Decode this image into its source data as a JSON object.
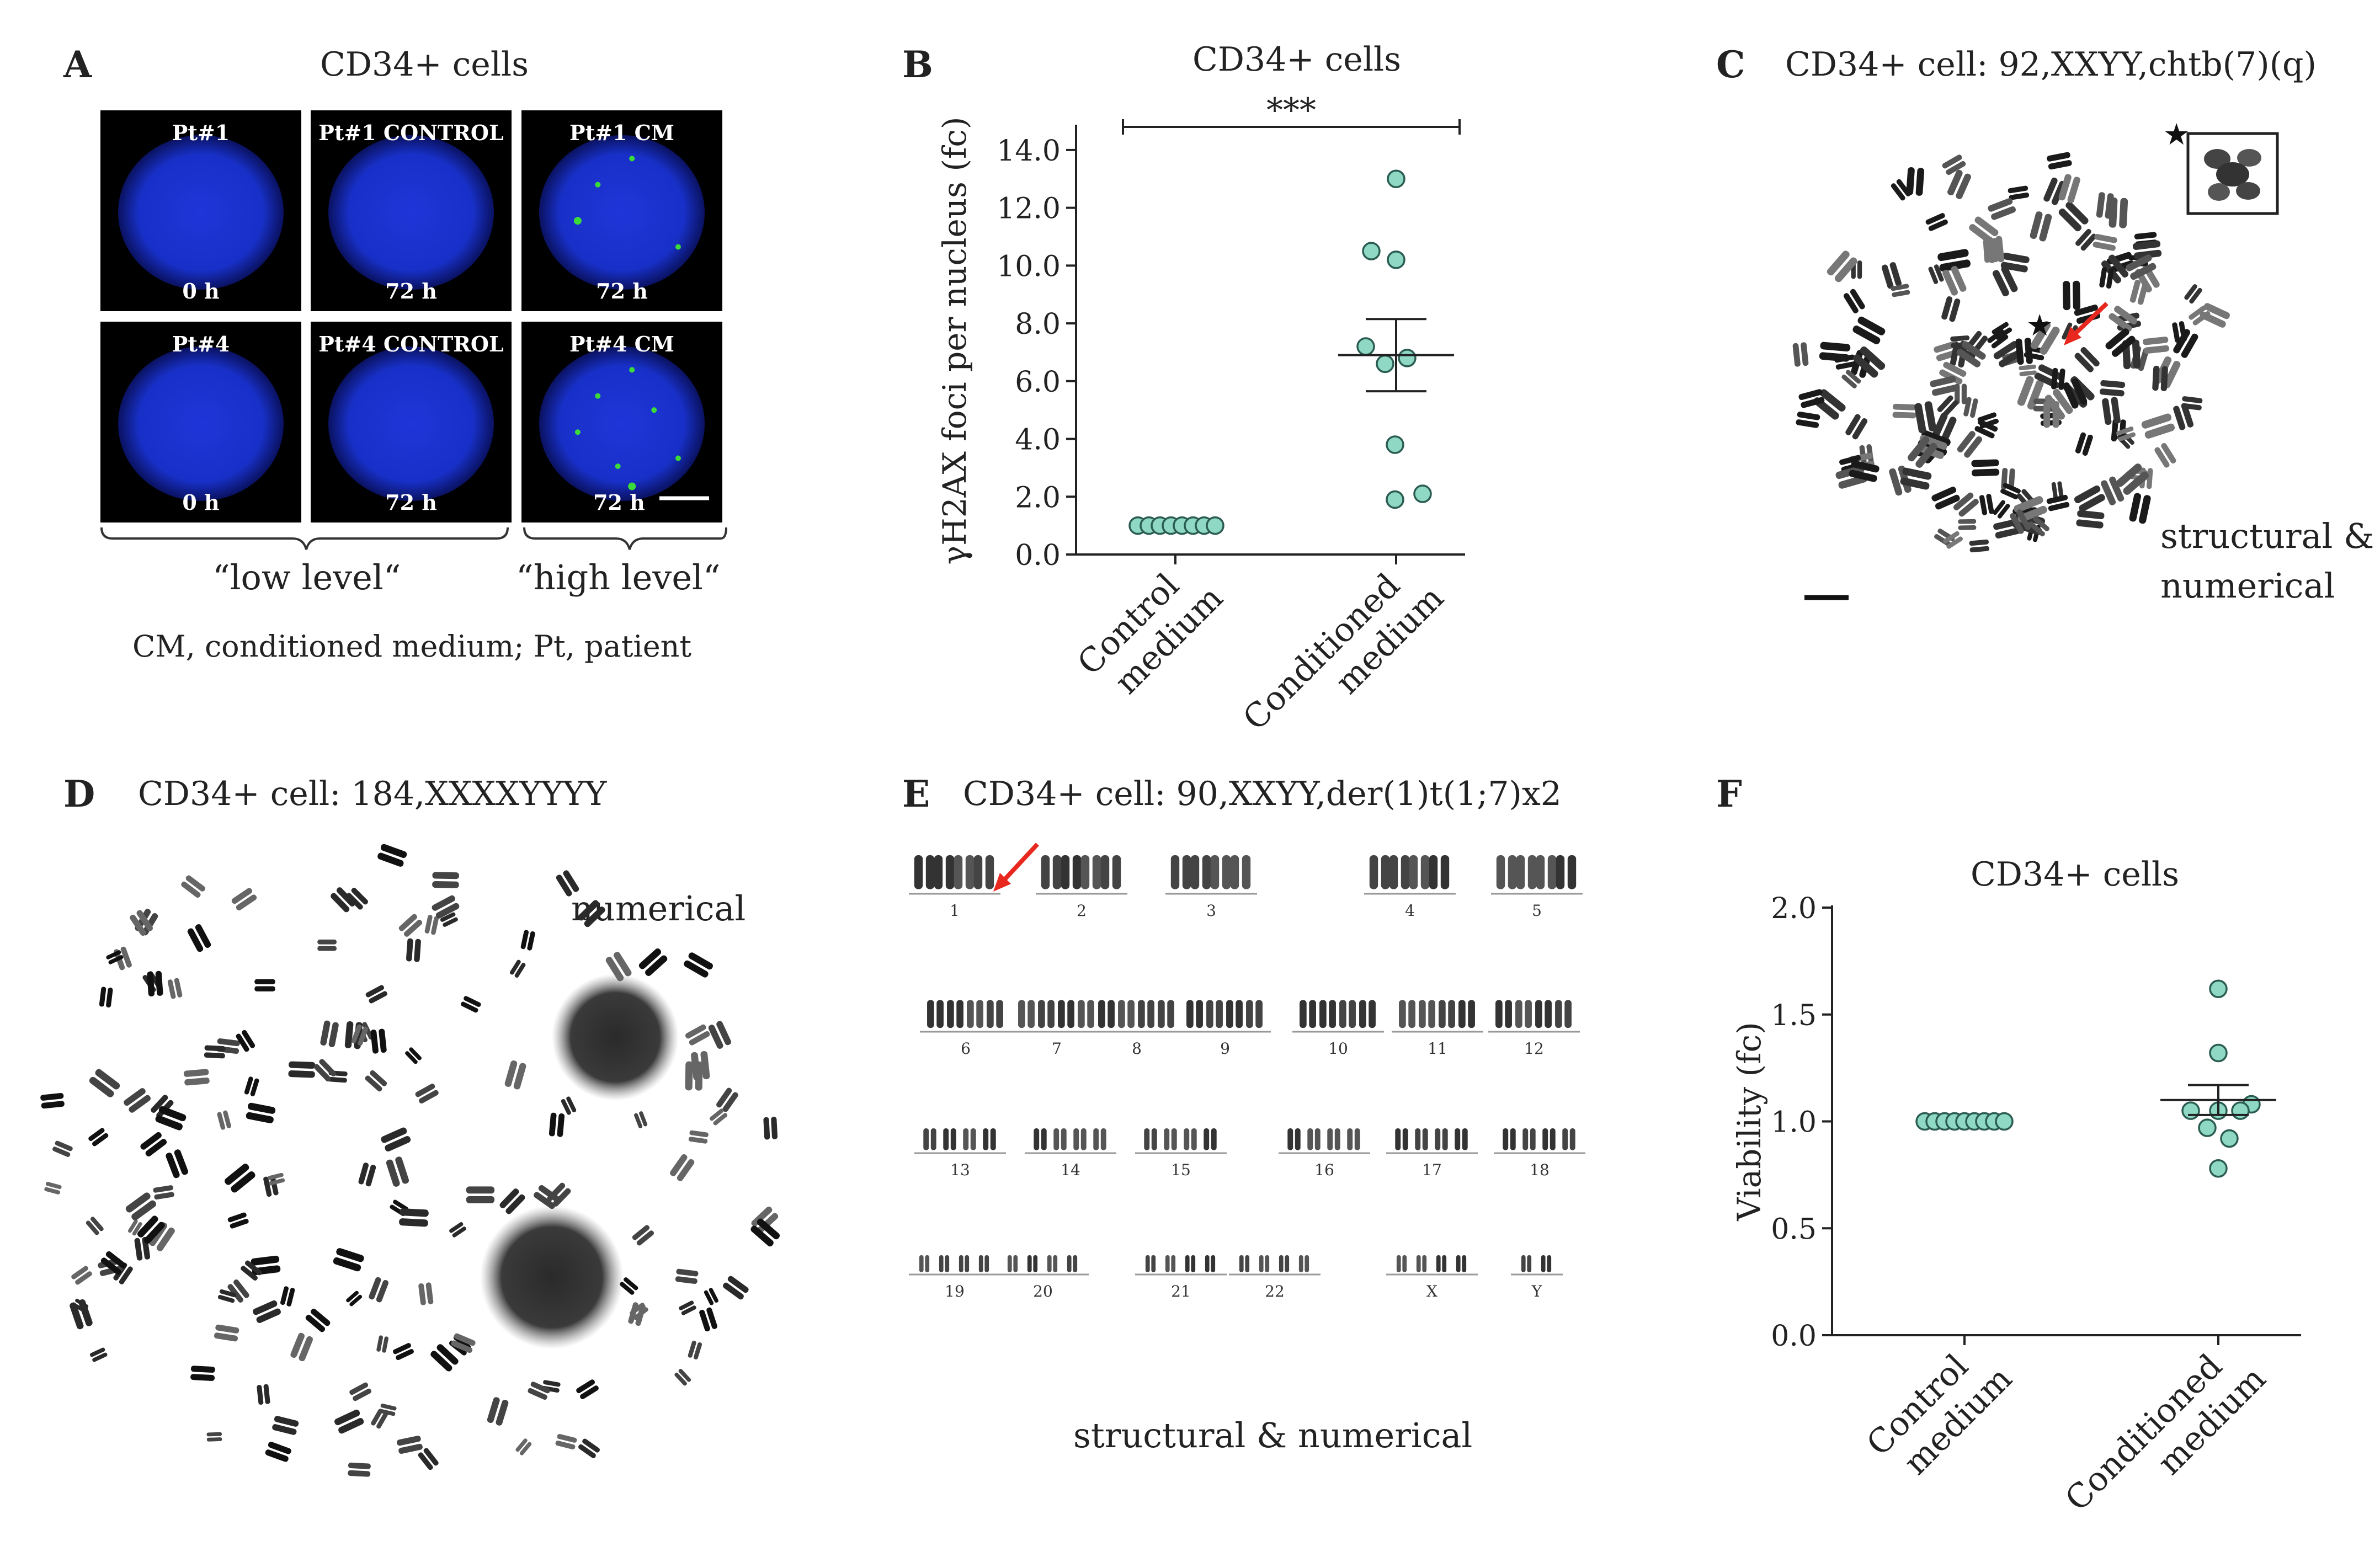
{
  "panels": {
    "A": {
      "label": "A",
      "title": "CD34+ cells",
      "images": [
        {
          "top": "Pt#1",
          "bottom": "0 h",
          "foci": 0
        },
        {
          "top": "Pt#1 CONTROL",
          "bottom": "72 h",
          "foci": 0
        },
        {
          "top": "Pt#1 CM",
          "bottom": "72 h",
          "foci": 4
        },
        {
          "top": "Pt#4",
          "bottom": "0 h",
          "foci": 0
        },
        {
          "top": "Pt#4 CONTROL",
          "bottom": "72 h",
          "foci": 0
        },
        {
          "top": "Pt#4 CM",
          "bottom": "72 h",
          "foci": 7
        }
      ],
      "group_low": "“low level“",
      "group_high": "“high level“",
      "caption": "CM, conditioned medium; Pt, patient"
    },
    "B": {
      "label": "B"
    },
    "C": {
      "label": "C",
      "title": "CD34+ cell: 92,XXYY,chtb(7)(q)",
      "note_line1": "structural &",
      "note_line2": "numerical",
      "star": "★"
    },
    "D": {
      "label": "D",
      "title": "CD34+ cell: 184,XXXXYYYY",
      "note": "numerical"
    },
    "E": {
      "label": "E",
      "title": "CD34+ cell: 90,XXYY,der(1)t(1;7)x2",
      "caption": "structural & numerical",
      "karyotype_labels": [
        "1",
        "2",
        "3",
        "4",
        "5",
        "6",
        "7",
        "8",
        "9",
        "10",
        "11",
        "12",
        "13",
        "14",
        "15",
        "16",
        "17",
        "18",
        "19",
        "20",
        "21",
        "22",
        "X",
        "Y"
      ]
    },
    "F": {
      "label": "F"
    }
  },
  "colors": {
    "point_fill": "#8fd9c4",
    "point_stroke": "#2b5c52",
    "dapi_blue": "#1830c8",
    "foci_green": "#3adb3a",
    "arrow_red": "#e8281e"
  },
  "chart_data": [
    {
      "type": "scatter",
      "title": "CD34+ cells",
      "categories": [
        "Control medium",
        "Conditioned medium"
      ],
      "ylabel": "γH2AX foci per nucleus (fc)",
      "yticks": [
        "0.0",
        "2.0",
        "4.0",
        "6.0",
        "8.0",
        "10.0",
        "12.0",
        "14.0"
      ],
      "ylim": [
        0,
        14.8
      ],
      "series": [
        {
          "values": [
            1.0,
            1.0,
            1.0,
            1.0,
            1.0,
            1.0,
            1.0,
            1.0
          ]
        },
        {
          "values": [
            13.0,
            10.5,
            10.2,
            7.2,
            6.6,
            6.8,
            3.8,
            1.9,
            2.1
          ]
        }
      ],
      "mean": [
        1.0,
        6.9
      ],
      "sem": [
        0,
        1.25
      ],
      "significance": "***"
    },
    {
      "type": "scatter",
      "title": "CD34+ cells",
      "categories": [
        "Control medium",
        "Conditioned medium"
      ],
      "ylabel": "Viability (fc)",
      "yticks": [
        "0.0",
        "0.5",
        "1.0",
        "1.5",
        "2.0"
      ],
      "ylim": [
        0,
        2.0
      ],
      "series": [
        {
          "values": [
            1.0,
            1.0,
            1.0,
            1.0,
            1.0,
            1.0,
            1.0,
            1.0,
            1.0
          ]
        },
        {
          "values": [
            1.62,
            1.32,
            1.05,
            1.05,
            1.08,
            1.05,
            0.97,
            0.92,
            0.78
          ]
        }
      ],
      "mean": [
        1.0,
        1.1
      ],
      "sem": [
        0,
        0.07
      ]
    }
  ]
}
